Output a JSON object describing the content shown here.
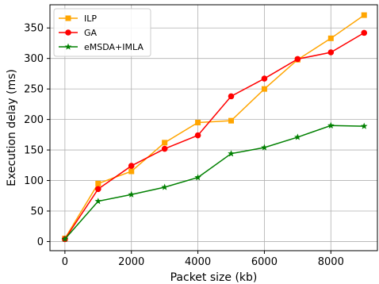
{
  "chart_data": {
    "type": "line",
    "xlabel": "Packet size (kb)",
    "ylabel": "Execution delay (ms)",
    "xlim": [
      -450,
      9400
    ],
    "ylim": [
      -15,
      388
    ],
    "x_ticks": [
      0,
      2000,
      4000,
      6000,
      8000
    ],
    "y_ticks": [
      0,
      50,
      100,
      150,
      200,
      250,
      300,
      350
    ],
    "grid": true,
    "legend_position": "top-left",
    "x": [
      0,
      1000,
      2000,
      3000,
      4000,
      5000,
      6000,
      7000,
      8000,
      9000
    ],
    "series": [
      {
        "name": "ILP",
        "color": "#FFA500",
        "marker": "square",
        "values": [
          5,
          95,
          115,
          162,
          195,
          198,
          250,
          298,
          333,
          371
        ]
      },
      {
        "name": "GA",
        "color": "#FF0000",
        "marker": "circle",
        "values": [
          4,
          86,
          124,
          152,
          174,
          238,
          267,
          299,
          310,
          342
        ]
      },
      {
        "name": "eMSDA+IMLA",
        "color": "#008000",
        "marker": "star",
        "values": [
          4,
          66,
          77,
          89,
          105,
          144,
          154,
          171,
          190,
          189
        ]
      }
    ]
  }
}
